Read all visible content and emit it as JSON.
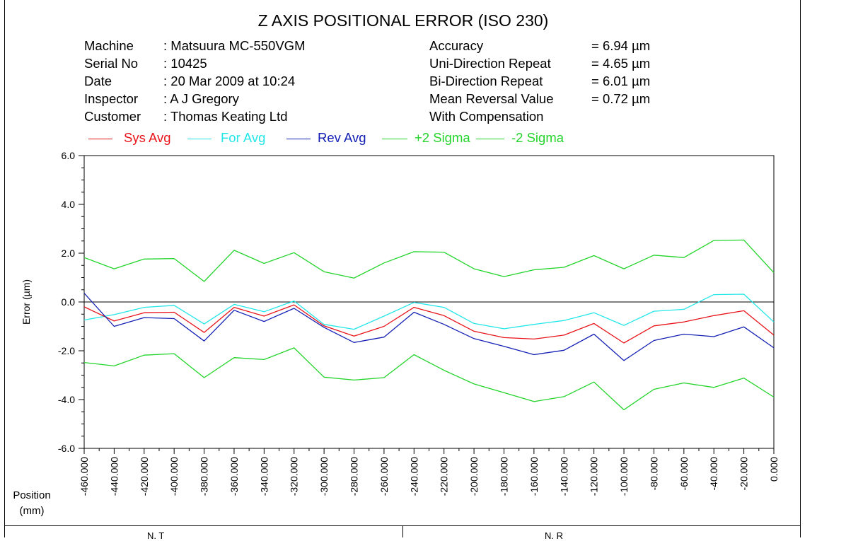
{
  "header": {
    "title": "Z AXIS POSITIONAL ERROR (ISO 230)"
  },
  "info_left": [
    {
      "label": "Machine",
      "value": ": Matsuura MC-550VGM"
    },
    {
      "label": "Serial No",
      "value": ": 10425"
    },
    {
      "label": "Date",
      "value": ": 20 Mar 2009 at 10:24"
    },
    {
      "label": "Inspector",
      "value": ": A J Gregory"
    },
    {
      "label": "Customer",
      "value": ": Thomas Keating Ltd"
    }
  ],
  "info_right": [
    {
      "label": "Accuracy",
      "value": "= 6.94 µm"
    },
    {
      "label": "Uni-Direction Repeat",
      "value": "= 4.65 µm"
    },
    {
      "label": "Bi-Direction Repeat",
      "value": "= 6.01 µm"
    },
    {
      "label": "Mean Reversal Value",
      "value": "= 0.72 µm"
    },
    {
      "label": "With Compensation",
      "value": ""
    }
  ],
  "chart_data": {
    "type": "line",
    "title": "Z AXIS POSITIONAL ERROR (ISO 230)",
    "xlabel": "Position (mm)",
    "ylabel": "Error (µm)",
    "xlabel_line1": "Position",
    "xlabel_line2": "(mm)",
    "ylim": [
      -6.0,
      6.0
    ],
    "y_ticks": [
      "6.0",
      "4.0",
      "2.0",
      "0.0",
      "-2.0",
      "-4.0",
      "-6.0"
    ],
    "y_tick_values": [
      6,
      4,
      2,
      0,
      -2,
      -4,
      -6
    ],
    "x": [
      -460,
      -440,
      -420,
      -400,
      -380,
      -360,
      -340,
      -320,
      -300,
      -280,
      -260,
      -240,
      -220,
      -200,
      -180,
      -160,
      -140,
      -120,
      -100,
      -80,
      -60,
      -40,
      -20,
      0
    ],
    "x_tick_labels": [
      "-460.000",
      "-440.000",
      "-420.000",
      "-400.000",
      "-380.000",
      "-360.000",
      "-340.000",
      "-320.000",
      "-300.000",
      "-280.000",
      "-260.000",
      "-240.000",
      "-220.000",
      "-200.000",
      "-180.000",
      "-160.000",
      "-140.000",
      "-120.000",
      "-100.000",
      "-80.000",
      "-60.000",
      "-40.000",
      "-20.000",
      "0.000"
    ],
    "legend_placement": "top",
    "zero_line": true,
    "series": [
      {
        "name": "Sys Avg",
        "color": "#e8141a",
        "values": [
          -0.2,
          -0.78,
          -0.44,
          -0.42,
          -1.25,
          -0.22,
          -0.58,
          -0.12,
          -0.98,
          -1.4,
          -1.0,
          -0.22,
          -0.56,
          -1.2,
          -1.46,
          -1.52,
          -1.36,
          -0.88,
          -1.68,
          -0.98,
          -0.82,
          -0.56,
          -0.36,
          -1.36
        ]
      },
      {
        "name": "For Avg",
        "color": "#22e6e8",
        "values": [
          -0.74,
          -0.52,
          -0.22,
          -0.14,
          -0.9,
          -0.1,
          -0.4,
          0.04,
          -0.92,
          -1.12,
          -0.58,
          -0.02,
          -0.22,
          -0.88,
          -1.1,
          -0.92,
          -0.76,
          -0.44,
          -0.96,
          -0.38,
          -0.3,
          0.3,
          0.32,
          -0.82
        ]
      },
      {
        "name": "Rev Avg",
        "color": "#1420b4",
        "values": [
          0.36,
          -1.0,
          -0.64,
          -0.68,
          -1.6,
          -0.34,
          -0.8,
          -0.26,
          -1.04,
          -1.66,
          -1.44,
          -0.42,
          -0.92,
          -1.5,
          -1.82,
          -2.16,
          -1.98,
          -1.32,
          -2.4,
          -1.58,
          -1.32,
          -1.42,
          -1.02,
          -1.88
        ]
      },
      {
        "name": "+2 Sigma",
        "color": "#23d42a",
        "values": [
          1.82,
          1.36,
          1.76,
          1.78,
          0.84,
          2.12,
          1.58,
          2.02,
          1.24,
          0.98,
          1.6,
          2.06,
          2.04,
          1.36,
          1.04,
          1.32,
          1.42,
          1.9,
          1.36,
          1.92,
          1.82,
          2.52,
          2.54,
          1.2
        ]
      },
      {
        "name": "-2 Sigma",
        "color": "#23d42a",
        "values": [
          -2.48,
          -2.62,
          -2.18,
          -2.12,
          -3.1,
          -2.28,
          -2.36,
          -1.88,
          -3.08,
          -3.2,
          -3.1,
          -2.16,
          -2.8,
          -3.36,
          -3.72,
          -4.08,
          -3.88,
          -3.28,
          -4.42,
          -3.58,
          -3.32,
          -3.5,
          -3.12,
          -3.9
        ]
      }
    ]
  },
  "footer": {
    "left_text": "N. T",
    "right_text": "N. R"
  }
}
